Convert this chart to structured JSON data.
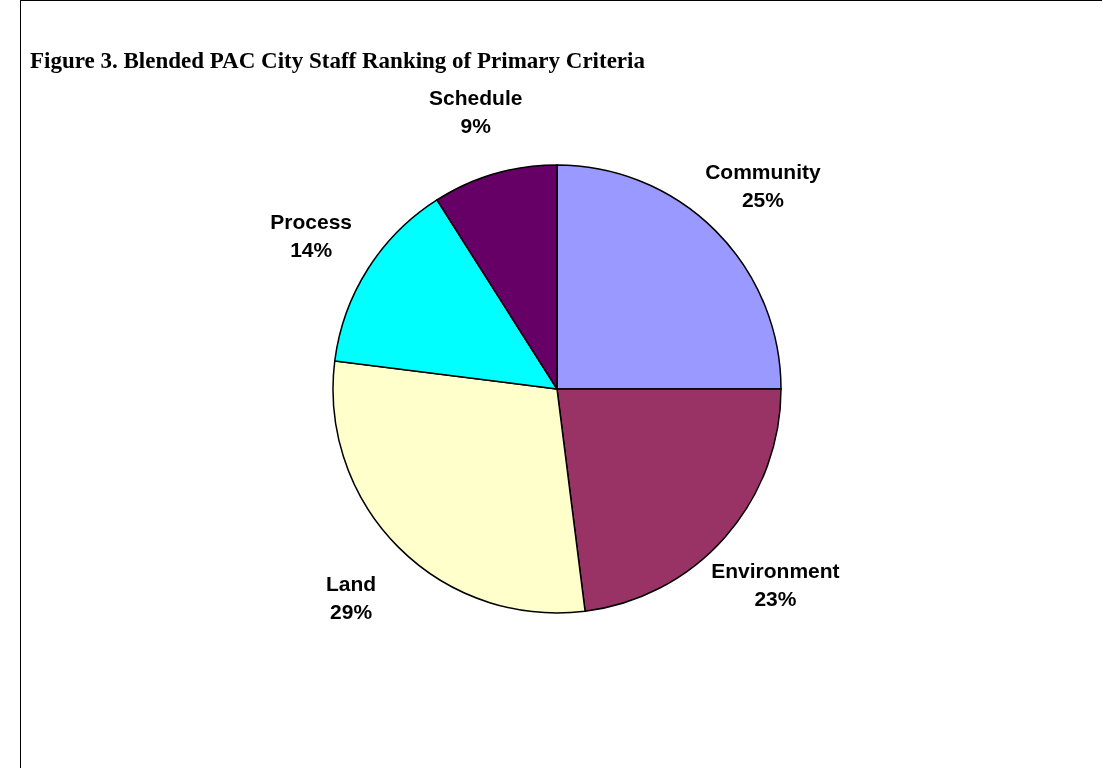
{
  "chart_data": {
    "type": "pie",
    "title": "Figure 3.  Blended PAC City Staff Ranking of Primary Criteria",
    "categories": [
      "Community",
      "Environment",
      "Land",
      "Process",
      "Schedule"
    ],
    "values": [
      25,
      23,
      29,
      14,
      9
    ],
    "colors": [
      "#9999ff",
      "#993366",
      "#ffffcc",
      "#00ffff",
      "#660066"
    ],
    "value_labels": [
      "25%",
      "23%",
      "29%",
      "14%",
      "9%"
    ]
  }
}
